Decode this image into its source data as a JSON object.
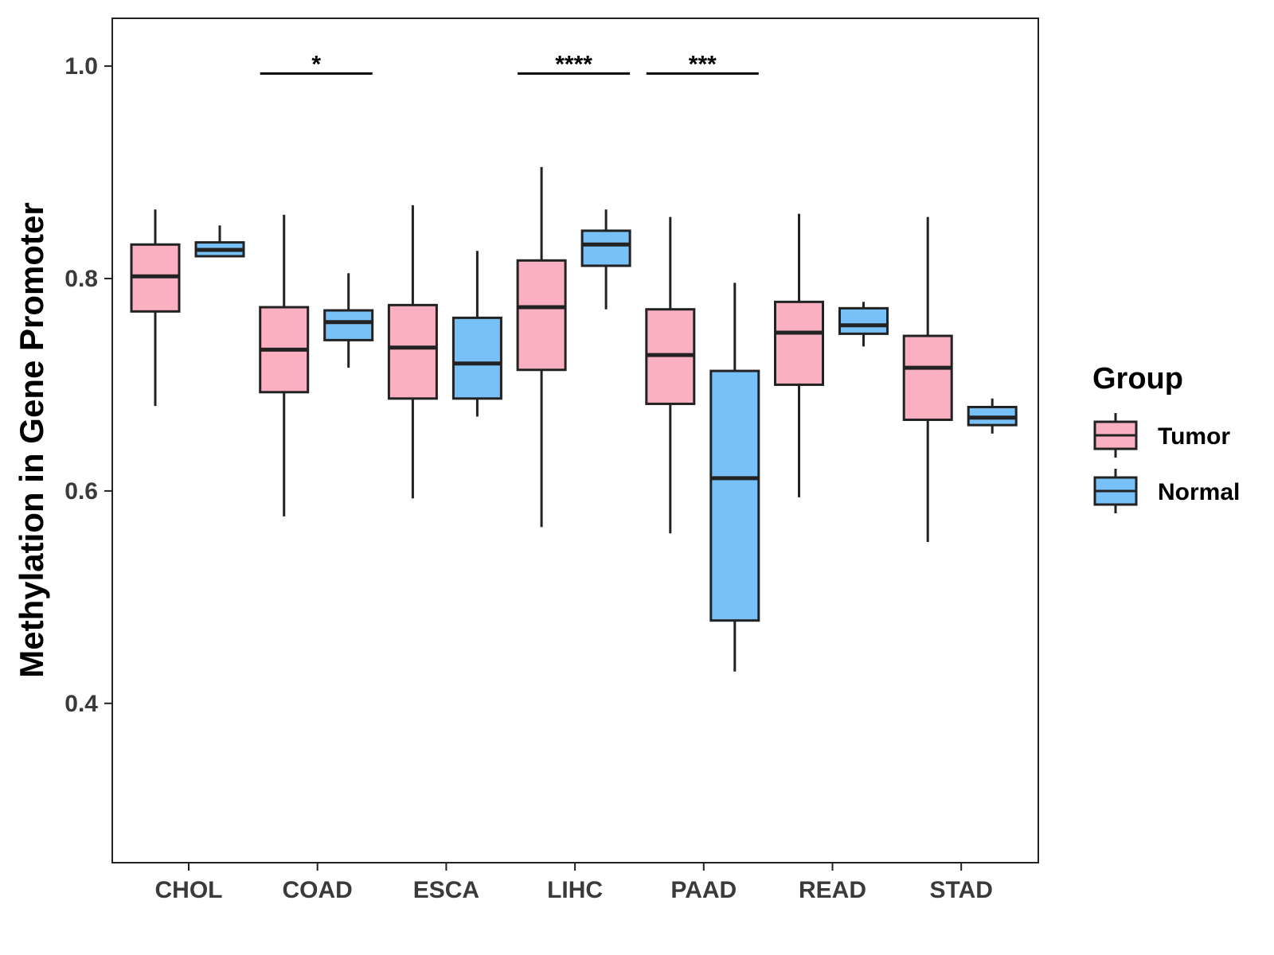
{
  "chart_data": {
    "type": "boxplot",
    "title": "",
    "xlabel": "",
    "ylabel": "Methylation in Gene Promoter",
    "ylim": [
      0.25,
      1.045
    ],
    "yticks": [
      0.4,
      0.6,
      0.8,
      1.0
    ],
    "ytick_labels": [
      "0.4",
      "0.6",
      "0.8",
      "1.0"
    ],
    "categories": [
      "CHOL",
      "COAD",
      "ESCA",
      "LIHC",
      "PAAD",
      "READ",
      "STAD"
    ],
    "legend": {
      "title": "Group",
      "position": "right",
      "entries": [
        {
          "name": "Tumor",
          "color": "#FAB0C0"
        },
        {
          "name": "Normal",
          "color": "#77C1F8"
        }
      ]
    },
    "series": [
      {
        "name": "Tumor",
        "color": "#FAB0C0",
        "boxes": [
          {
            "min": 0.68,
            "q1": 0.769,
            "median": 0.802,
            "q3": 0.832,
            "max": 0.865
          },
          {
            "min": 0.576,
            "q1": 0.693,
            "median": 0.733,
            "q3": 0.773,
            "max": 0.86
          },
          {
            "min": 0.593,
            "q1": 0.687,
            "median": 0.735,
            "q3": 0.775,
            "max": 0.869
          },
          {
            "min": 0.566,
            "q1": 0.714,
            "median": 0.773,
            "q3": 0.817,
            "max": 0.905
          },
          {
            "min": 0.56,
            "q1": 0.682,
            "median": 0.728,
            "q3": 0.771,
            "max": 0.858
          },
          {
            "min": 0.594,
            "q1": 0.7,
            "median": 0.749,
            "q3": 0.778,
            "max": 0.861
          },
          {
            "min": 0.552,
            "q1": 0.667,
            "median": 0.716,
            "q3": 0.746,
            "max": 0.858
          }
        ]
      },
      {
        "name": "Normal",
        "color": "#77C1F8",
        "boxes": [
          {
            "min": 0.821,
            "q1": 0.821,
            "median": 0.827,
            "q3": 0.834,
            "max": 0.85
          },
          {
            "min": 0.716,
            "q1": 0.742,
            "median": 0.759,
            "q3": 0.77,
            "max": 0.805
          },
          {
            "min": 0.67,
            "q1": 0.687,
            "median": 0.72,
            "q3": 0.763,
            "max": 0.826
          },
          {
            "min": 0.771,
            "q1": 0.812,
            "median": 0.832,
            "q3": 0.845,
            "max": 0.865
          },
          {
            "min": 0.43,
            "q1": 0.478,
            "median": 0.612,
            "q3": 0.713,
            "max": 0.796
          },
          {
            "min": 0.736,
            "q1": 0.748,
            "median": 0.756,
            "q3": 0.772,
            "max": 0.778
          },
          {
            "min": 0.654,
            "q1": 0.662,
            "median": 0.669,
            "q3": 0.679,
            "max": 0.687
          }
        ]
      }
    ],
    "significance": [
      {
        "category": "COAD",
        "label": "*",
        "y": 0.993
      },
      {
        "category": "LIHC",
        "label": "****",
        "y": 0.993
      },
      {
        "category": "PAAD",
        "label": "***",
        "y": 0.993
      }
    ]
  }
}
